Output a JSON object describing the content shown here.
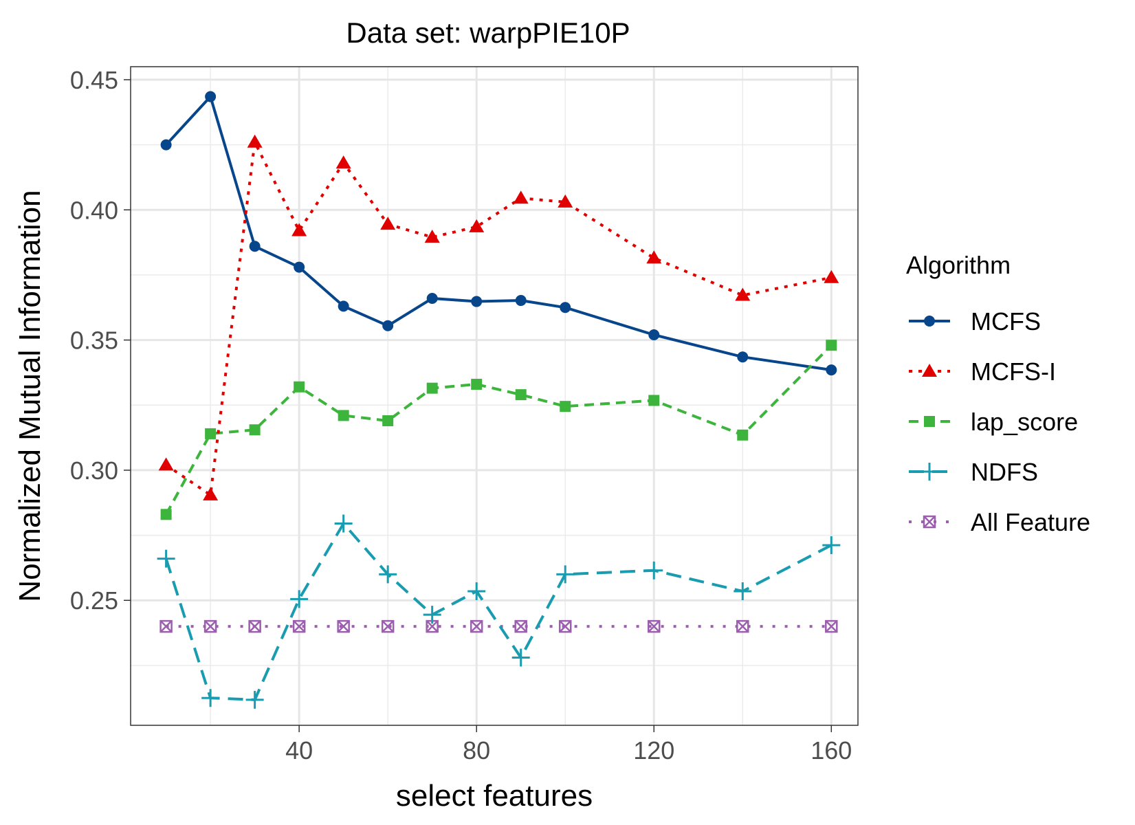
{
  "chart_data": {
    "type": "line",
    "title": "Data set: warpPIE10P",
    "xlabel": "select features",
    "ylabel": "Normalized Mutual Information",
    "xlim": [
      2,
      166
    ],
    "ylim": [
      0.202,
      0.455
    ],
    "x_ticks": [
      40,
      80,
      120,
      160
    ],
    "y_ticks": [
      0.25,
      0.3,
      0.35,
      0.4,
      0.45
    ],
    "y_tick_labels": [
      "0.25",
      "0.30",
      "0.35",
      "0.40",
      "0.45"
    ],
    "x_tick_labels": [
      "40",
      "80",
      "120",
      "160"
    ],
    "grid": true,
    "legend_title": "Algorithm",
    "legend_position": "right",
    "x": [
      10,
      20,
      30,
      40,
      50,
      60,
      70,
      80,
      90,
      100,
      120,
      140,
      160
    ],
    "series": [
      {
        "name": "MCFS",
        "color": "#08468c",
        "dash": "solid",
        "marker": "circle",
        "values": [
          0.425,
          0.4435,
          0.386,
          0.378,
          0.363,
          0.3555,
          0.366,
          0.3648,
          0.3652,
          0.3625,
          0.352,
          0.3435,
          0.3385
        ]
      },
      {
        "name": "MCFS-I",
        "color": "#e00000",
        "dash": "dotted",
        "marker": "triangle",
        "values": [
          0.302,
          0.2905,
          0.426,
          0.392,
          0.418,
          0.3945,
          0.3895,
          0.3935,
          0.4045,
          0.403,
          0.3815,
          0.3672,
          0.374
        ]
      },
      {
        "name": "lap_score",
        "color": "#3db53d",
        "dash": "dashed",
        "marker": "square",
        "values": [
          0.283,
          0.314,
          0.3155,
          0.332,
          0.321,
          0.319,
          0.3315,
          0.333,
          0.329,
          0.3245,
          0.3268,
          0.3135,
          0.348
        ]
      },
      {
        "name": "NDFS",
        "color": "#1a9cb0",
        "dash": "longdash",
        "marker": "plus",
        "values": [
          0.266,
          0.2125,
          0.2118,
          0.2505,
          0.2795,
          0.26,
          0.2445,
          0.2535,
          0.228,
          0.26,
          0.2615,
          0.2535,
          0.2712
        ]
      },
      {
        "name": "All Feature",
        "color": "#9b5fae",
        "dash": "dot-sparse",
        "marker": "boxx",
        "values": [
          0.24,
          0.24,
          0.24,
          0.24,
          0.24,
          0.24,
          0.24,
          0.24,
          0.24,
          0.24,
          0.24,
          0.24,
          0.24
        ]
      }
    ]
  }
}
